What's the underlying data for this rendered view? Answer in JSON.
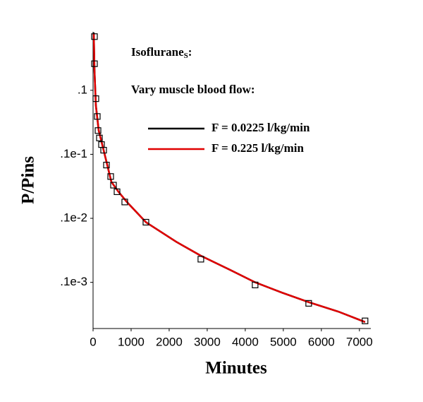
{
  "chart_data": {
    "type": "line",
    "title_parts": [
      "Isoflurane",
      "S",
      ":"
    ],
    "subtitle": "Vary muscle blood flow:",
    "x_label": "Minutes",
    "y_label": "P/Pins",
    "y_log": true,
    "xlim": [
      0,
      7300
    ],
    "ylim": [
      1.9e-05,
      0.82
    ],
    "xticks": [
      0,
      1000,
      2000,
      3000,
      4000,
      5000,
      6000,
      7000
    ],
    "yticks": [
      {
        "value": 0.1,
        "label": ".1"
      },
      {
        "value": 0.01,
        "label": ".1e-1"
      },
      {
        "value": 0.001,
        "label": ".1e-2"
      },
      {
        "value": 0.0001,
        "label": ".1e-3"
      }
    ],
    "x": [
      19,
      37,
      74,
      148,
      241,
      333,
      481,
      667,
      889,
      1389,
      2185,
      2833,
      3667,
      4259,
      4963,
      5667,
      6444,
      7148
    ],
    "series": [
      {
        "name": "F = 0.0225 l/kg/min",
        "color": "#000000",
        "values": [
          0.8,
          0.21,
          0.058,
          0.0236,
          0.0142,
          0.0085,
          0.0037,
          0.0026,
          0.0018,
          0.00087,
          0.00043,
          0.00026,
          0.00015,
          0.0001,
          6.9e-05,
          4.9e-05,
          3.5e-05,
          2.4e-05
        ]
      },
      {
        "name": "F = 0.225 l/kg/min",
        "color": "#e00000",
        "values": [
          0.78,
          0.204,
          0.057,
          0.0235,
          0.0142,
          0.0085,
          0.0037,
          0.0026,
          0.0018,
          0.00087,
          0.00043,
          0.00026,
          0.00015,
          0.0001,
          6.9e-05,
          4.9e-05,
          3.5e-05,
          2.4e-05
        ]
      }
    ],
    "observations": {
      "x": [
        37,
        37,
        74,
        111,
        130,
        167,
        222,
        278,
        352,
        463,
        537,
        630,
        833,
        1389,
        2833,
        4259,
        5667,
        7148
      ],
      "values": [
        0.69,
        0.26,
        0.074,
        0.039,
        0.0235,
        0.018,
        0.0142,
        0.0116,
        0.0068,
        0.0045,
        0.0033,
        0.0026,
        0.0018,
        0.00087,
        0.00023,
        9.1e-05,
        4.7e-05,
        2.5e-05
      ]
    }
  }
}
